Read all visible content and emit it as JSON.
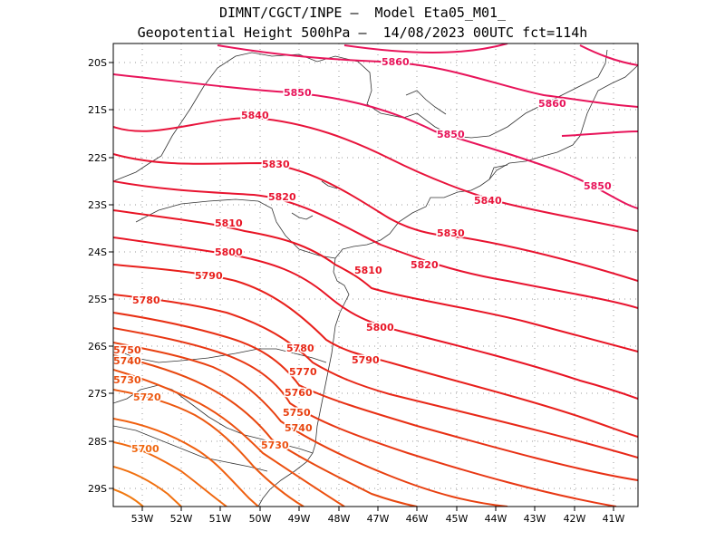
{
  "title_line1": "DIMNT/CGCT/INPE –  Model Eta05_M01_",
  "title_line2": "Geopotential Height 500hPa –  14/08/2023 00UTC fct=114h",
  "lon_labels": [
    "53W",
    "52W",
    "51W",
    "50W",
    "49W",
    "48W",
    "47W",
    "46W",
    "45W",
    "44W",
    "43W",
    "42W",
    "41W"
  ],
  "lat_labels": [
    "20S",
    "21S",
    "22S",
    "23S",
    "24S",
    "25S",
    "26S",
    "27S",
    "28S",
    "29S"
  ],
  "contour_labels": [
    "5860",
    "5860",
    "5850",
    "5850",
    "5850",
    "5840",
    "5840",
    "5830",
    "5830",
    "5820",
    "5820",
    "5810",
    "5810",
    "5800",
    "5800",
    "5790",
    "5790",
    "5780",
    "5780",
    "5770",
    "5760",
    "5750",
    "5750",
    "5740",
    "5740",
    "5730",
    "5730",
    "5720",
    "5700"
  ],
  "colors": {
    "high": "#e8145a",
    "mid": "#e81430",
    "low": "#e84010",
    "lowest": "#f06010"
  }
}
